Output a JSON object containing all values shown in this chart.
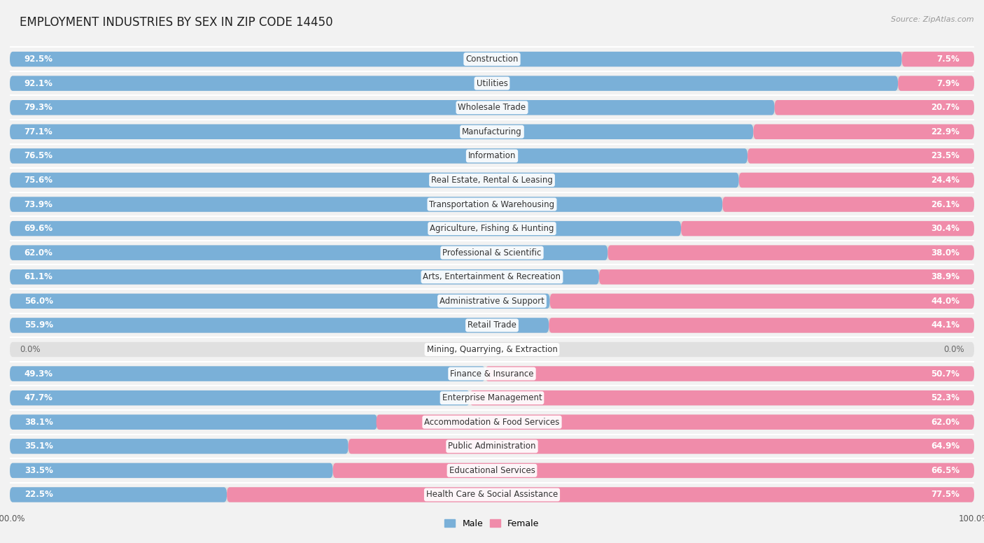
{
  "title": "EMPLOYMENT INDUSTRIES BY SEX IN ZIP CODE 14450",
  "source": "Source: ZipAtlas.com",
  "categories": [
    "Construction",
    "Utilities",
    "Wholesale Trade",
    "Manufacturing",
    "Information",
    "Real Estate, Rental & Leasing",
    "Transportation & Warehousing",
    "Agriculture, Fishing & Hunting",
    "Professional & Scientific",
    "Arts, Entertainment & Recreation",
    "Administrative & Support",
    "Retail Trade",
    "Mining, Quarrying, & Extraction",
    "Finance & Insurance",
    "Enterprise Management",
    "Accommodation & Food Services",
    "Public Administration",
    "Educational Services",
    "Health Care & Social Assistance"
  ],
  "male": [
    92.5,
    92.1,
    79.3,
    77.1,
    76.5,
    75.6,
    73.9,
    69.6,
    62.0,
    61.1,
    56.0,
    55.9,
    0.0,
    49.3,
    47.7,
    38.1,
    35.1,
    33.5,
    22.5
  ],
  "female": [
    7.5,
    7.9,
    20.7,
    22.9,
    23.5,
    24.4,
    26.1,
    30.4,
    38.0,
    38.9,
    44.0,
    44.1,
    0.0,
    50.7,
    52.3,
    62.0,
    64.9,
    66.5,
    77.5
  ],
  "male_color": "#7ab0d8",
  "female_color": "#f08caa",
  "bg_color": "#f2f2f2",
  "bar_bg_color": "#e0e0e0",
  "title_fontsize": 12,
  "label_fontsize": 8.5,
  "tick_fontsize": 8.5,
  "bar_height": 0.62,
  "bar_gap": 0.38
}
